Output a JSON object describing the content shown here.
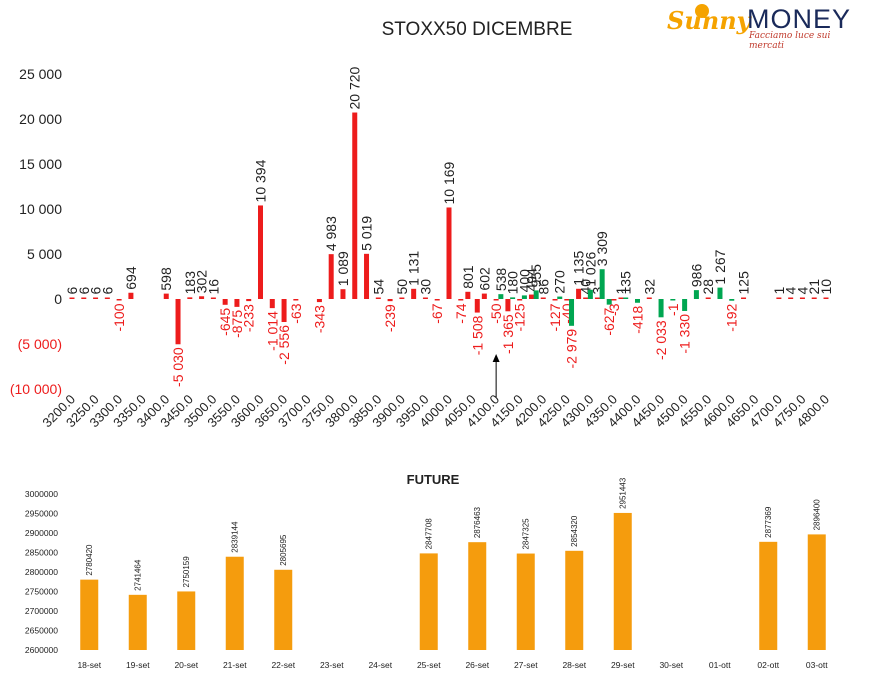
{
  "logo": {
    "part1": "Sunny",
    "part2": "MONEY",
    "tagline": "Facciamo luce sui mercati"
  },
  "colors": {
    "positive": "#ed1c1c",
    "negative_green": "#00a651",
    "negative_label": "#ed1c1c",
    "future_bar": "#f59c0d",
    "text": "#222222"
  },
  "charts": [
    {
      "title": "STOXX50 DICEMBRE",
      "type": "bar",
      "x": [
        3200,
        3225,
        3250,
        3275,
        3300,
        3325,
        3350,
        3375,
        3400,
        3425,
        3450,
        3475,
        3500,
        3525,
        3550,
        3575,
        3600,
        3625,
        3650,
        3675,
        3700,
        3725,
        3750,
        3775,
        3800,
        3825,
        3850,
        3875,
        3900,
        3925,
        3950,
        3975,
        4000,
        4025,
        4050,
        4075,
        4100,
        4125,
        4150,
        4175,
        4200,
        4225,
        4250,
        4275,
        4300,
        4325,
        4350,
        4375,
        4400,
        4425,
        4450,
        4475,
        4500,
        4525,
        4550,
        4575,
        4600,
        4625,
        4650,
        4675,
        4700,
        4725,
        4750,
        4775,
        4800
      ],
      "xlabels": [
        "3200.0",
        "3250.0",
        "3300.0",
        "3350.0",
        "3400.0",
        "3450.0",
        "3500.0",
        "3550.0",
        "3600.0",
        "3650.0",
        "3700.0",
        "3750.0",
        "3800.0",
        "3850.0",
        "3900.0",
        "3950.0",
        "4000.0",
        "4050.0",
        "4100.0",
        "4150.0",
        "4200.0",
        "4250.0",
        "4300.0",
        "4350.0",
        "4400.0",
        "4450.0",
        "4500.0",
        "4550.0",
        "4600.0",
        "4650.0",
        "4700.0",
        "4750.0",
        "4800.0"
      ],
      "yticks": [
        "25 000",
        "20 000",
        "15 000",
        "10 000",
        "5 000",
        "0",
        "(5 000)",
        "(10 000)"
      ],
      "ylim": [
        -10000,
        25000
      ],
      "bars": [
        {
          "x": 3200,
          "v": 6,
          "label": "6",
          "color": "red"
        },
        {
          "x": 3225,
          "v": 6,
          "label": "6",
          "color": "red"
        },
        {
          "x": 3250,
          "v": 6,
          "label": "6",
          "color": "red"
        },
        {
          "x": 3275,
          "v": 6,
          "label": "6",
          "color": "red"
        },
        {
          "x": 3300,
          "v": -100,
          "label": "-100",
          "color": "red"
        },
        {
          "x": 3325,
          "v": 694,
          "label": "694",
          "color": "red"
        },
        {
          "x": 3400,
          "v": 598,
          "label": "598",
          "color": "red"
        },
        {
          "x": 3425,
          "v": -5030,
          "label": "-5 030",
          "color": "red"
        },
        {
          "x": 3450,
          "v": 183,
          "label": "183",
          "color": "red"
        },
        {
          "x": 3475,
          "v": 302,
          "label": "302",
          "color": "red"
        },
        {
          "x": 3500,
          "v": 16,
          "label": "16",
          "color": "red"
        },
        {
          "x": 3525,
          "v": -645,
          "label": "-645",
          "color": "red"
        },
        {
          "x": 3550,
          "v": -875,
          "label": "-875",
          "color": "red"
        },
        {
          "x": 3575,
          "v": -233,
          "label": "-233",
          "color": "red"
        },
        {
          "x": 3600,
          "v": 10394,
          "label": "10 394",
          "color": "red"
        },
        {
          "x": 3625,
          "v": -1014,
          "label": "-1 014",
          "color": "red"
        },
        {
          "x": 3650,
          "v": -2556,
          "label": "-2 556",
          "color": "red"
        },
        {
          "x": 3675,
          "v": -63,
          "label": "-63",
          "color": "red"
        },
        {
          "x": 3725,
          "v": -343,
          "label": "-343",
          "color": "red"
        },
        {
          "x": 3750,
          "v": 4983,
          "label": "4 983",
          "color": "red"
        },
        {
          "x": 3775,
          "v": 1089,
          "label": "1 089",
          "color": "red"
        },
        {
          "x": 3800,
          "v": 20720,
          "label": "20 720",
          "color": "red"
        },
        {
          "x": 3825,
          "v": 5019,
          "label": "5 019",
          "color": "red"
        },
        {
          "x": 3850,
          "v": 54,
          "label": "54",
          "color": "red"
        },
        {
          "x": 3875,
          "v": -239,
          "label": "-239",
          "color": "red"
        },
        {
          "x": 3900,
          "v": 50,
          "label": "50",
          "color": "red"
        },
        {
          "x": 3925,
          "v": 1131,
          "label": "1 131",
          "color": "red"
        },
        {
          "x": 3950,
          "v": 30,
          "label": "30",
          "color": "red"
        },
        {
          "x": 3975,
          "v": -67,
          "label": "-67",
          "color": "red"
        },
        {
          "x": 4000,
          "v": 10169,
          "label": "10 169",
          "color": "red"
        },
        {
          "x": 4025,
          "v": -74,
          "label": "-74",
          "color": "red"
        },
        {
          "x": 4040,
          "v": 801,
          "label": "801",
          "color": "red"
        },
        {
          "x": 4060,
          "v": -1508,
          "label": "-1 508",
          "color": "red"
        },
        {
          "x": 4075,
          "v": 602,
          "label": "602",
          "color": "red"
        },
        {
          "x": 4100,
          "v": -50,
          "label": "-50",
          "color": "red"
        },
        {
          "x": 4110,
          "v": 538,
          "label": "538",
          "color": "green"
        },
        {
          "x": 4125,
          "v": -1365,
          "label": "-1 365",
          "color": "red"
        },
        {
          "x": 4135,
          "v": 180,
          "label": "180",
          "color": "green"
        },
        {
          "x": 4150,
          "v": -125,
          "label": "-125",
          "color": "red"
        },
        {
          "x": 4160,
          "v": 400,
          "label": "400",
          "color": "green"
        },
        {
          "x": 4175,
          "v": 494,
          "label": "494",
          "color": "red"
        },
        {
          "x": 4185,
          "v": 955,
          "label": "955",
          "color": "green"
        },
        {
          "x": 4200,
          "v": 86,
          "label": "86",
          "color": "red"
        },
        {
          "x": 4225,
          "v": -127,
          "label": "-127",
          "color": "red"
        },
        {
          "x": 4235,
          "v": 270,
          "label": "270",
          "color": "green"
        },
        {
          "x": 4250,
          "v": -40,
          "label": "-40",
          "color": "red"
        },
        {
          "x": 4260,
          "v": -2979,
          "label": "-2 979",
          "color": "green"
        },
        {
          "x": 4275,
          "v": 1135,
          "label": "1 135",
          "color": "red"
        },
        {
          "x": 4290,
          "v": 40,
          "label": "40",
          "color": "red"
        },
        {
          "x": 4300,
          "v": 1026,
          "label": "1 026",
          "color": "green"
        },
        {
          "x": 4315,
          "v": 3,
          "label": "3",
          "color": "red"
        },
        {
          "x": 4325,
          "v": 3309,
          "label": "3 309",
          "color": "green"
        },
        {
          "x": 4340,
          "v": -627,
          "label": "-627",
          "color": "green"
        },
        {
          "x": 4350,
          "v": -3,
          "label": "-3",
          "color": "red"
        },
        {
          "x": 4365,
          "v": 1,
          "label": "1",
          "color": "red"
        },
        {
          "x": 4375,
          "v": 135,
          "label": "135",
          "color": "green"
        },
        {
          "x": 4400,
          "v": -418,
          "label": "-418",
          "color": "green"
        },
        {
          "x": 4425,
          "v": 32,
          "label": "32",
          "color": "red"
        },
        {
          "x": 4450,
          "v": -2033,
          "label": "-2 033",
          "color": "green"
        },
        {
          "x": 4475,
          "v": -1,
          "label": "-1",
          "color": "green"
        },
        {
          "x": 4500,
          "v": -1330,
          "label": "-1 330",
          "color": "green"
        },
        {
          "x": 4525,
          "v": 986,
          "label": "986",
          "color": "green"
        },
        {
          "x": 4550,
          "v": 28,
          "label": "28",
          "color": "red"
        },
        {
          "x": 4575,
          "v": 1267,
          "label": "1 267",
          "color": "green"
        },
        {
          "x": 4600,
          "v": -192,
          "label": "-192",
          "color": "green"
        },
        {
          "x": 4625,
          "v": 125,
          "label": "125",
          "color": "red"
        },
        {
          "x": 4700,
          "v": 1,
          "label": "1",
          "color": "red"
        },
        {
          "x": 4725,
          "v": 4,
          "label": "4",
          "color": "red"
        },
        {
          "x": 4750,
          "v": 4,
          "label": "4",
          "color": "red"
        },
        {
          "x": 4775,
          "v": 21,
          "label": "21",
          "color": "red"
        },
        {
          "x": 4800,
          "v": 10,
          "label": "10",
          "color": "red"
        }
      ],
      "annotation": {
        "type": "arrow-up",
        "x": 4100
      }
    },
    {
      "title": "FUTURE",
      "type": "bar",
      "categories": [
        "18-set",
        "19-set",
        "20-set",
        "21-set",
        "22-set",
        "23-set",
        "24-set",
        "25-set",
        "26-set",
        "27-set",
        "28-set",
        "29-set",
        "30-set",
        "01-ott",
        "02-ott",
        "03-ott"
      ],
      "values": [
        2780420,
        2741464,
        2750159,
        2839144,
        2805695,
        null,
        null,
        2847708,
        2876463,
        2847325,
        2854320,
        2951443,
        null,
        null,
        2877369,
        2896400
      ],
      "value_labels": [
        "2780420",
        "2741464",
        "2750159",
        "2839144",
        "2805695",
        "",
        "",
        "2847708",
        "2876463",
        "2847325",
        "2854320",
        "2951443",
        "",
        "",
        "2877369",
        "2896400"
      ],
      "yticks": [
        "3000000",
        "2950000",
        "2900000",
        "2850000",
        "2800000",
        "2750000",
        "2700000",
        "2650000",
        "2600000"
      ],
      "ylim": [
        2600000,
        3000000
      ]
    }
  ],
  "chart_data": [
    {
      "type": "bar",
      "title": "STOXX50 DICEMBRE",
      "xlabel": "",
      "ylabel": "",
      "ylim": [
        -10000,
        25000
      ],
      "x": [
        3200,
        3225,
        3250,
        3275,
        3300,
        3325,
        3400,
        3425,
        3450,
        3475,
        3500,
        3525,
        3550,
        3575,
        3600,
        3625,
        3650,
        3675,
        3725,
        3750,
        3775,
        3800,
        3825,
        3850,
        3875,
        3900,
        3925,
        3950,
        3975,
        4000,
        4025,
        4040,
        4060,
        4075,
        4100,
        4110,
        4125,
        4135,
        4150,
        4160,
        4175,
        4185,
        4200,
        4225,
        4235,
        4250,
        4260,
        4275,
        4290,
        4300,
        4315,
        4325,
        4340,
        4350,
        4365,
        4375,
        4400,
        4425,
        4450,
        4475,
        4500,
        4525,
        4550,
        4575,
        4600,
        4625,
        4700,
        4725,
        4750,
        4775,
        4800
      ],
      "values": [
        6,
        6,
        6,
        6,
        -100,
        694,
        598,
        -5030,
        183,
        302,
        16,
        -645,
        -875,
        -233,
        10394,
        -1014,
        -2556,
        -63,
        -343,
        4983,
        1089,
        20720,
        5019,
        54,
        -239,
        50,
        1131,
        30,
        -67,
        10169,
        -74,
        801,
        -1508,
        602,
        -50,
        538,
        -1365,
        180,
        -125,
        400,
        494,
        955,
        86,
        -127,
        270,
        -40,
        -2979,
        1135,
        40,
        1026,
        3,
        3309,
        -627,
        -3,
        1,
        135,
        -418,
        32,
        -2033,
        -1,
        -1330,
        986,
        28,
        1267,
        -192,
        125,
        1,
        4,
        4,
        21,
        10
      ]
    },
    {
      "type": "bar",
      "title": "FUTURE",
      "xlabel": "",
      "ylabel": "",
      "ylim": [
        2600000,
        3000000
      ],
      "categories": [
        "18-set",
        "19-set",
        "20-set",
        "21-set",
        "22-set",
        "23-set",
        "24-set",
        "25-set",
        "26-set",
        "27-set",
        "28-set",
        "29-set",
        "30-set",
        "01-ott",
        "02-ott",
        "03-ott"
      ],
      "values": [
        2780420,
        2741464,
        2750159,
        2839144,
        2805695,
        null,
        null,
        2847708,
        2876463,
        2847325,
        2854320,
        2951443,
        null,
        null,
        2877369,
        2896400
      ]
    }
  ]
}
